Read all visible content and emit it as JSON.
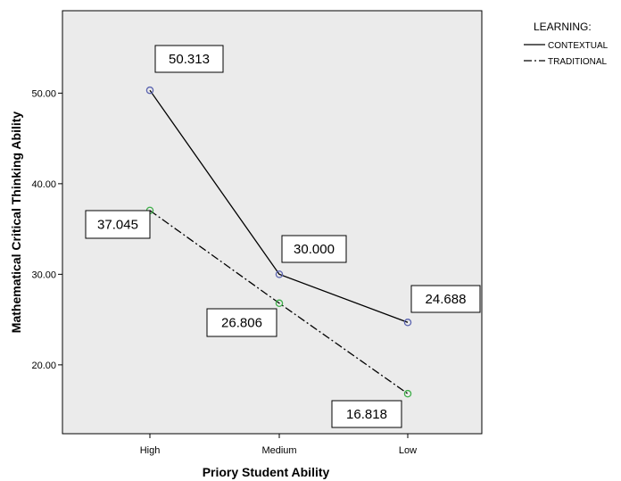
{
  "chart_data": {
    "type": "line",
    "title": "",
    "xlabel": "Priory Student Ability",
    "ylabel": "Mathematical Critical Thinking Ability",
    "categories": [
      "High",
      "Medium",
      "Low"
    ],
    "ylim": [
      12.4,
      59.1
    ],
    "yticks": [
      "20.00",
      "30.00",
      "40.00",
      "50.00"
    ],
    "ytick_values": [
      20,
      30,
      40,
      50
    ],
    "grid": false,
    "plot_background": "#ebebeb",
    "legend": {
      "title": "LEARNING:",
      "placement": "right"
    },
    "series": [
      {
        "name": "CONTEXTUAL",
        "values": [
          50.313,
          30.0,
          24.688
        ],
        "labels": [
          "50.313",
          "30.000",
          "24.688"
        ],
        "line_style": "solid",
        "marker_color": "#5b64b0"
      },
      {
        "name": "TRADITIONAL",
        "values": [
          37.045,
          26.806,
          16.818
        ],
        "labels": [
          "37.045",
          "26.806",
          "16.818"
        ],
        "line_style": "dash-dot",
        "marker_color": "#3fae4a"
      }
    ]
  }
}
